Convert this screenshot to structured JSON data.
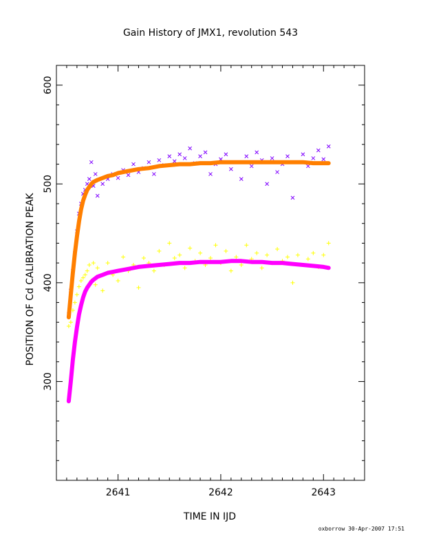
{
  "chart_data": {
    "type": "scatter",
    "title": "Gain History of JMX1, revolution 543",
    "xlabel": "TIME IN IJD",
    "ylabel": "POSITION OF Cd CALIBRATION PEAK",
    "xlim": [
      2640.4,
      2643.4
    ],
    "ylim": [
      200,
      620
    ],
    "xticks": [
      2641,
      2642,
      2643
    ],
    "yticks": [
      300,
      400,
      500,
      600
    ],
    "grid": false,
    "series": [
      {
        "marker": "x",
        "color": "#7f00ff",
        "x": [
          2640.52,
          2640.54,
          2640.56,
          2640.58,
          2640.6,
          2640.62,
          2640.64,
          2640.66,
          2640.68,
          2640.7,
          2640.72,
          2640.74,
          2640.76,
          2640.78,
          2640.8,
          2640.85,
          2640.9,
          2640.95,
          2641.0,
          2641.05,
          2641.1,
          2641.15,
          2641.2,
          2641.25,
          2641.3,
          2641.35,
          2641.4,
          2641.45,
          2641.5,
          2641.55,
          2641.6,
          2641.65,
          2641.7,
          2641.75,
          2641.8,
          2641.85,
          2641.9,
          2641.95,
          2642.0,
          2642.05,
          2642.1,
          2642.15,
          2642.2,
          2642.25,
          2642.3,
          2642.35,
          2642.4,
          2642.45,
          2642.5,
          2642.55,
          2642.6,
          2642.65,
          2642.7,
          2642.75,
          2642.8,
          2642.85,
          2642.9,
          2642.95,
          2643.0,
          2643.05
        ],
        "y": [
          368,
          392,
          412,
          430,
          452,
          470,
          480,
          490,
          494,
          500,
          505,
          522,
          498,
          510,
          488,
          500,
          505,
          510,
          506,
          514,
          509,
          520,
          512,
          516,
          522,
          510,
          524,
          519,
          528,
          523,
          530,
          526,
          536,
          521,
          528,
          532,
          510,
          520,
          525,
          530,
          515,
          522,
          505,
          528,
          518,
          532,
          524,
          500,
          526,
          512,
          520,
          528,
          486,
          522,
          530,
          518,
          526,
          534,
          525,
          538
        ]
      },
      {
        "marker": "line",
        "color": "#ff7f00",
        "x": [
          2640.52,
          2640.54,
          2640.56,
          2640.58,
          2640.6,
          2640.62,
          2640.64,
          2640.66,
          2640.68,
          2640.7,
          2640.72,
          2640.74,
          2640.76,
          2640.8,
          2640.85,
          2640.9,
          2640.95,
          2641.0,
          2641.1,
          2641.2,
          2641.3,
          2641.4,
          2641.5,
          2641.6,
          2641.7,
          2641.8,
          2641.9,
          2642.0,
          2642.1,
          2642.2,
          2642.3,
          2642.4,
          2642.5,
          2642.6,
          2642.7,
          2642.8,
          2642.9,
          2643.0,
          2643.05
        ],
        "y": [
          365,
          388,
          410,
          430,
          447,
          462,
          474,
          483,
          489,
          494,
          497,
          500,
          502,
          504,
          506,
          508,
          509,
          511,
          513,
          515,
          516,
          518,
          519,
          520,
          520,
          521,
          521,
          522,
          522,
          522,
          522,
          522,
          522,
          522,
          522,
          522,
          521,
          521,
          521
        ]
      },
      {
        "marker": "+",
        "color": "#ffff00",
        "x": [
          2640.52,
          2640.54,
          2640.56,
          2640.58,
          2640.6,
          2640.62,
          2640.64,
          2640.66,
          2640.68,
          2640.7,
          2640.72,
          2640.74,
          2640.76,
          2640.78,
          2640.8,
          2640.85,
          2640.9,
          2640.95,
          2641.0,
          2641.05,
          2641.1,
          2641.15,
          2641.2,
          2641.25,
          2641.3,
          2641.35,
          2641.4,
          2641.45,
          2641.5,
          2641.55,
          2641.6,
          2641.65,
          2641.7,
          2641.75,
          2641.8,
          2641.85,
          2641.9,
          2641.95,
          2642.0,
          2642.05,
          2642.1,
          2642.15,
          2642.2,
          2642.25,
          2642.3,
          2642.35,
          2642.4,
          2642.45,
          2642.5,
          2642.55,
          2642.6,
          2642.65,
          2642.7,
          2642.75,
          2642.8,
          2642.85,
          2642.9,
          2642.95,
          2643.0,
          2643.05
        ],
        "y": [
          356,
          360,
          372,
          380,
          388,
          396,
          402,
          405,
          408,
          412,
          418,
          402,
          420,
          398,
          415,
          392,
          420,
          408,
          402,
          426,
          412,
          418,
          395,
          425,
          420,
          412,
          432,
          418,
          440,
          425,
          428,
          415,
          435,
          422,
          430,
          418,
          425,
          438,
          420,
          432,
          412,
          426,
          418,
          438,
          424,
          430,
          415,
          428,
          420,
          434,
          422,
          426,
          400,
          428,
          418,
          424,
          430,
          416,
          428,
          440
        ]
      },
      {
        "marker": "line",
        "color": "#ff00ff",
        "x": [
          2640.52,
          2640.54,
          2640.56,
          2640.58,
          2640.6,
          2640.62,
          2640.64,
          2640.66,
          2640.68,
          2640.7,
          2640.72,
          2640.74,
          2640.76,
          2640.8,
          2640.85,
          2640.9,
          2640.95,
          2641.0,
          2641.1,
          2641.2,
          2641.3,
          2641.4,
          2641.5,
          2641.6,
          2641.7,
          2641.8,
          2641.9,
          2642.0,
          2642.1,
          2642.2,
          2642.3,
          2642.4,
          2642.5,
          2642.6,
          2642.7,
          2642.8,
          2642.9,
          2643.0,
          2643.05
        ],
        "y": [
          280,
          300,
          322,
          340,
          355,
          368,
          377,
          385,
          391,
          395,
          398,
          401,
          403,
          406,
          408,
          410,
          411,
          412,
          414,
          416,
          417,
          418,
          419,
          420,
          420,
          421,
          421,
          421,
          422,
          422,
          421,
          421,
          420,
          420,
          419,
          418,
          417,
          416,
          415
        ]
      }
    ],
    "footer": "oxborrow 30-Apr-2007 17:51"
  }
}
